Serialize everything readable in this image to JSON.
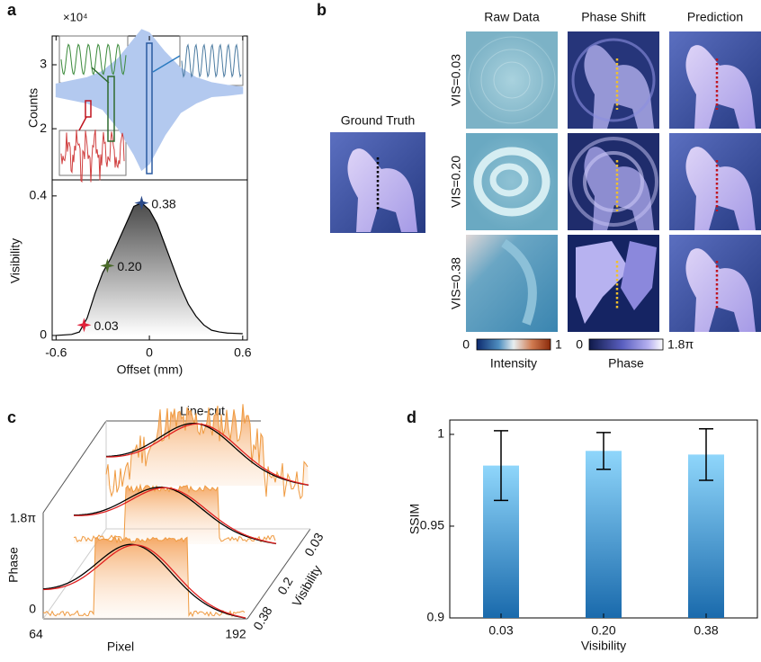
{
  "panel_labels": [
    "a",
    "b",
    "c",
    "d"
  ],
  "chart_data": [
    {
      "type": "area",
      "ylabel": "Counts",
      "y_multiplier": "×10⁴",
      "x": [
        -0.6,
        -0.5,
        -0.4,
        -0.3,
        -0.2,
        -0.1,
        -0.05,
        0,
        0.1,
        0.2,
        0.3,
        0.4,
        0.5,
        0.6
      ],
      "upper": [
        2.7,
        2.75,
        2.8,
        2.9,
        3.1,
        3.4,
        3.55,
        3.5,
        3.2,
        2.95,
        2.8,
        2.72,
        2.68,
        2.65
      ],
      "lower": [
        2.5,
        2.45,
        2.4,
        2.3,
        2.0,
        1.6,
        1.35,
        1.45,
        1.9,
        2.25,
        2.4,
        2.5,
        2.52,
        2.55
      ],
      "color": "#b3c9ef",
      "xlim": [
        -0.625,
        0.63
      ],
      "ylim": [
        1.2,
        3.45
      ],
      "yticks": [
        2,
        3
      ]
    },
    {
      "type": "line",
      "xlabel": "Offset (mm)",
      "ylabel": "Visibility",
      "x": [
        -0.6,
        -0.5,
        -0.45,
        -0.4,
        -0.35,
        -0.3,
        -0.25,
        -0.2,
        -0.15,
        -0.1,
        -0.05,
        0,
        0.05,
        0.1,
        0.15,
        0.2,
        0.25,
        0.3,
        0.35,
        0.4,
        0.45,
        0.5,
        0.6
      ],
      "values": [
        0,
        0.003,
        0.01,
        0.05,
        0.12,
        0.18,
        0.22,
        0.27,
        0.32,
        0.37,
        0.38,
        0.36,
        0.32,
        0.26,
        0.2,
        0.14,
        0.09,
        0.055,
        0.03,
        0.015,
        0.01,
        0.007,
        0.005
      ],
      "color": "#000000",
      "xlim": [
        -0.625,
        0.63
      ],
      "ylim": [
        -0.013,
        0.446
      ],
      "xticks": [
        -0.6,
        0,
        0.6
      ],
      "yticks": [
        0,
        0.4
      ],
      "markers": {
        "x": [
          -0.42,
          -0.27,
          -0.05
        ],
        "values": [
          0.03,
          0.2,
          0.38
        ],
        "value_labels": [
          "0.03",
          "0.20",
          "0.38"
        ],
        "colors": [
          "#e0223a",
          "#4a6a2a",
          "#2a4a8a"
        ]
      }
    },
    {
      "type": "bar",
      "xlabel": "Visibility",
      "ylabel": "SSIM",
      "categories": [
        "0.03",
        "0.20",
        "0.38"
      ],
      "values": [
        0.983,
        0.991,
        0.989
      ],
      "errors": [
        0.019,
        0.01,
        0.014
      ],
      "ylim": [
        0.9,
        1.0078
      ],
      "yticks": [
        0.9,
        0.95,
        1
      ],
      "color": "#8fd6fb"
    }
  ],
  "panel_b": {
    "ground_truth": "Ground Truth",
    "columns": [
      "Raw Data",
      "Phase Shift",
      "Prediction"
    ],
    "rows": [
      "VIS=0.03",
      "VIS=0.20",
      "VIS=0.38"
    ],
    "colorbars": [
      {
        "min": "0",
        "max": "1",
        "title": "Intensity"
      },
      {
        "min": "0",
        "max": "1.8π",
        "title": "Phase"
      }
    ]
  },
  "panel_c": {
    "title": "Line-cut",
    "z_label": "Phase",
    "z_ticks": [
      "1.8π",
      "0"
    ],
    "x_label": "Pixel",
    "x_ticks": [
      "64",
      "192"
    ],
    "depth_label": "Visibility",
    "depth_ticks": [
      "0.38",
      "0.2",
      "0.03"
    ]
  }
}
